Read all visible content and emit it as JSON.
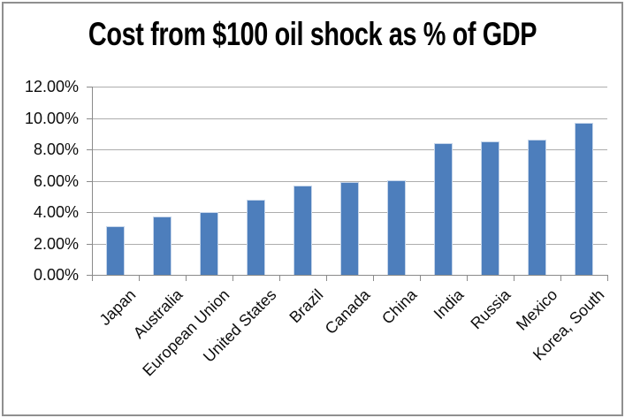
{
  "chart_data": {
    "type": "bar",
    "title": "Cost from $100 oil shock as % of GDP",
    "categories": [
      "Japan",
      "Australia",
      "European Union",
      "United States",
      "Brazil",
      "Canada",
      "China",
      "India",
      "Russia",
      "Mexico",
      "Korea, South"
    ],
    "values": [
      3.1,
      3.7,
      4.0,
      4.8,
      5.7,
      5.9,
      6.0,
      8.4,
      8.5,
      8.6,
      9.7
    ],
    "xlabel": "",
    "ylabel": "",
    "ylim": [
      0,
      12
    ],
    "ytick_step": 2,
    "ytick_labels": [
      "0.00%",
      "2.00%",
      "4.00%",
      "6.00%",
      "8.00%",
      "10.00%",
      "12.00%"
    ],
    "grid": true,
    "legend": false,
    "x_labels_rotation_deg": -45
  },
  "colors": {
    "bar_fill": "#4d7ebc",
    "bar_edge": "#c5d5ea",
    "gridline": "#adadad",
    "axis": "#8a8a8a",
    "frame_border": "#8f8f8f",
    "text": "#0d0d0d",
    "background": "#ffffff"
  }
}
